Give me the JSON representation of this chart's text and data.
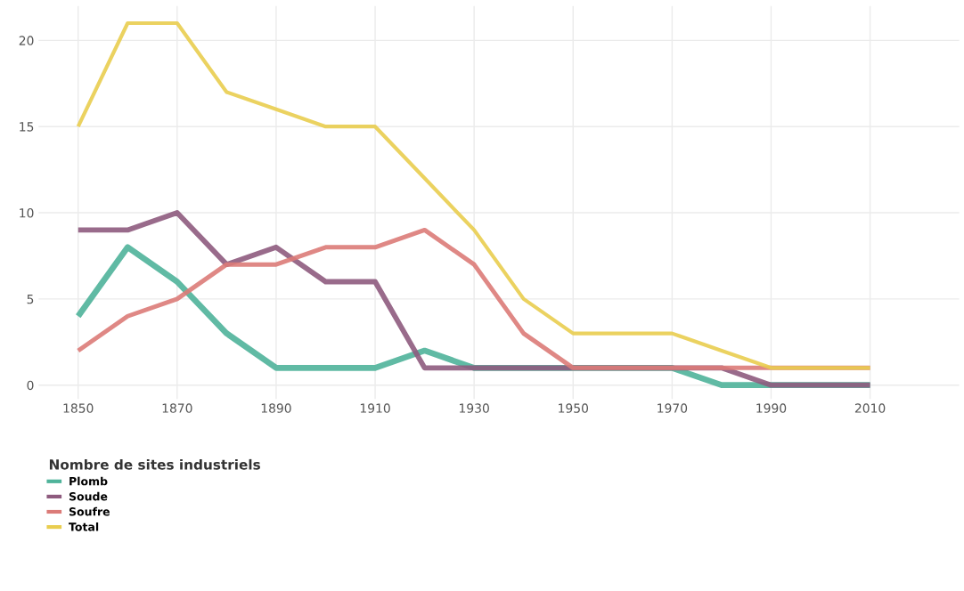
{
  "chart_data": {
    "type": "line",
    "x": [
      1850,
      1860,
      1870,
      1880,
      1890,
      1900,
      1910,
      1920,
      1930,
      1940,
      1950,
      1960,
      1970,
      1980,
      1990,
      2000,
      2010
    ],
    "series": [
      {
        "name": "Plomb",
        "color": "#4fb39a",
        "values": [
          4,
          8,
          6,
          3,
          1,
          1,
          1,
          2,
          1,
          1,
          1,
          1,
          1,
          0,
          0,
          0,
          0
        ]
      },
      {
        "name": "Soude",
        "color": "#8e5b7e",
        "values": [
          9,
          9,
          10,
          7,
          8,
          6,
          6,
          1,
          1,
          1,
          1,
          1,
          1,
          1,
          0,
          0,
          0
        ]
      },
      {
        "name": "Soufre",
        "color": "#db7b78",
        "values": [
          2,
          4,
          5,
          7,
          7,
          8,
          8,
          9,
          7,
          3,
          1,
          1,
          1,
          1,
          1,
          1,
          1
        ]
      },
      {
        "name": "Total",
        "color": "#e9cd4f",
        "values": [
          15,
          21,
          21,
          17,
          16,
          15,
          15,
          12,
          9,
          5,
          3,
          3,
          3,
          2,
          1,
          1,
          1
        ]
      }
    ],
    "legend_title": "Nombre de sites industriels",
    "legend": "bottom left",
    "xlim": [
      1842,
      2028
    ],
    "xticks": [
      1850,
      1870,
      1890,
      1910,
      1930,
      1950,
      1970,
      1990,
      2010
    ],
    "ylim": [
      -0.8,
      22
    ],
    "yticks": [
      0,
      5,
      10,
      15,
      20
    ],
    "grid": true,
    "marker": "none",
    "line_style": "solid"
  }
}
